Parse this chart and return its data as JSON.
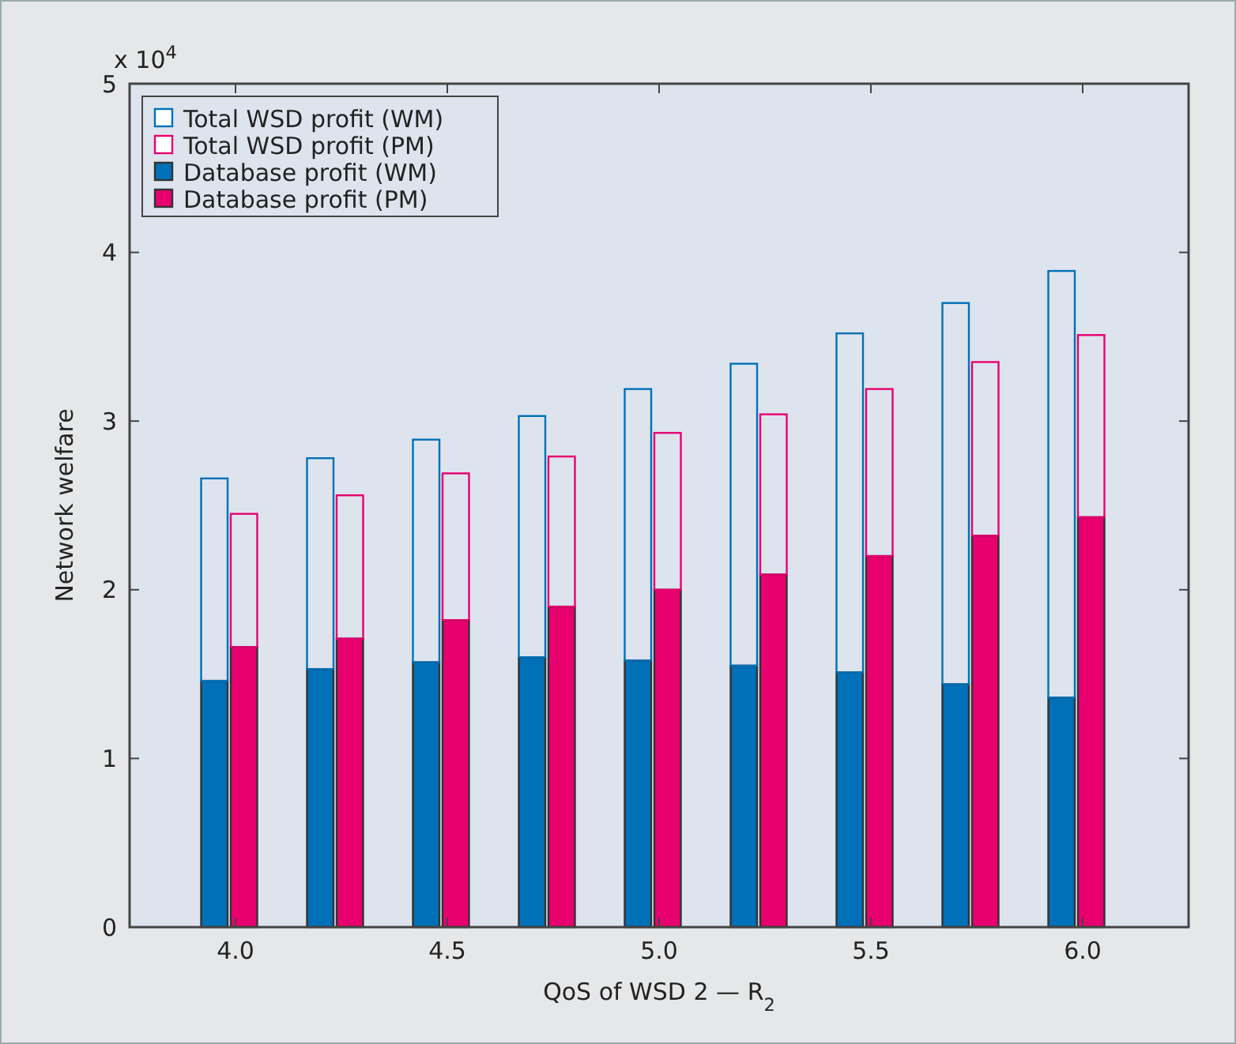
{
  "chart_data": {
    "type": "bar",
    "xlabel": "QoS of WSD 2 — R$_{2}$",
    "ylabel": "Network welfare",
    "annotations": [
      "x 10$^{4}$"
    ],
    "x": [
      4,
      4.25,
      4.5,
      4.75,
      5,
      5.25,
      5.5,
      5.75,
      6
    ],
    "xlim": [
      3.75,
      6.25
    ],
    "xticks": [
      {
        "value": 4,
        "label": "4.0"
      },
      {
        "value": 4.5,
        "label": "4.5"
      },
      {
        "value": 5,
        "label": "5.0"
      },
      {
        "value": 5.5,
        "label": "5.5"
      },
      {
        "value": 6,
        "label": "6.0"
      }
    ],
    "ylim": [
      0,
      5
    ],
    "yticks": [
      0,
      1,
      2,
      3,
      4,
      5
    ],
    "grid": false,
    "legend": "top left",
    "series": [
      {
        "name": "Database profit (WM)",
        "color": "#0070b8",
        "values": [
          1.46,
          1.53,
          1.57,
          1.6,
          1.58,
          1.55,
          1.51,
          1.44,
          1.36
        ]
      },
      {
        "name": "Database profit (PM)",
        "color": "#e8006f",
        "values": [
          1.66,
          1.71,
          1.82,
          1.9,
          2.0,
          2.09,
          2.2,
          2.32,
          2.43
        ]
      },
      {
        "name": "Total WSD profit (WM)",
        "color": "#0070b8",
        "base": [
          1.46,
          1.53,
          1.57,
          1.6,
          1.58,
          1.55,
          1.51,
          1.44,
          1.36
        ],
        "values": [
          1.2,
          1.25,
          1.32,
          1.43,
          1.61,
          1.79,
          2.01,
          2.26,
          2.53
        ]
      },
      {
        "name": "Total WSD profit (PM)",
        "color": "#e8006f",
        "base": [
          1.66,
          1.71,
          1.82,
          1.9,
          2.0,
          2.09,
          2.2,
          2.32,
          2.43
        ],
        "values": [
          0.79,
          0.85,
          0.87,
          0.89,
          0.93,
          0.95,
          0.99,
          1.03,
          1.08
        ]
      }
    ]
  }
}
